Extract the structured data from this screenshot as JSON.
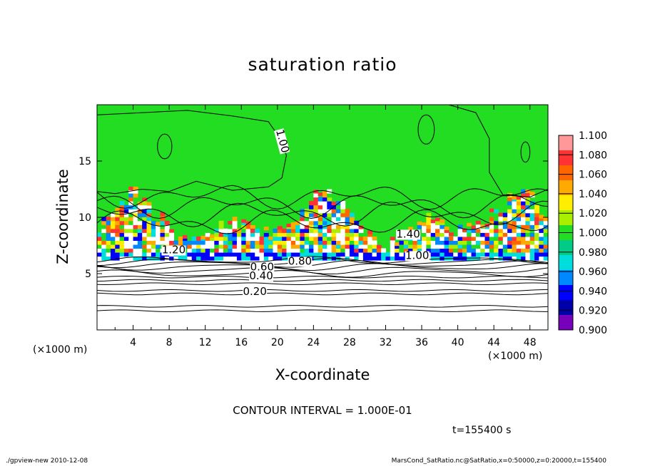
{
  "chart_data": {
    "type": "heatmap",
    "title": "saturation ratio",
    "xlabel": "X-coordinate",
    "ylabel": "Z-coordinate",
    "x_unit": "(×1000 m)",
    "xlim": [
      0,
      50
    ],
    "ylim": [
      0,
      20
    ],
    "xticks": [
      4,
      8,
      12,
      16,
      20,
      24,
      28,
      32,
      36,
      40,
      44,
      48
    ],
    "yticks": [
      5,
      10,
      15
    ],
    "colorbar": {
      "levels": [
        "1.100",
        "1.080",
        "1.060",
        "1.040",
        "1.020",
        "1.000",
        "0.980",
        "0.960",
        "0.940",
        "0.920",
        "0.900"
      ],
      "colors": [
        "#ff9999",
        "#ff3333",
        "#ff6600",
        "#ffaa00",
        "#ffee00",
        "#aaee00",
        "#22dd22",
        "#00cc88",
        "#00dddd",
        "#0088ff",
        "#0000ff",
        "#0000aa",
        "#7700bb"
      ],
      "placement": "right"
    },
    "contour_labels": [
      {
        "text": "1.00",
        "x": 20.5,
        "z": 16.5,
        "rotate": 75
      },
      {
        "text": "1.20",
        "x": 8.5,
        "z": 6.8,
        "rotate": 0
      },
      {
        "text": "0.60",
        "x": 18.3,
        "z": 5.3,
        "rotate": 0
      },
      {
        "text": "0.80",
        "x": 22.5,
        "z": 5.8,
        "rotate": 0
      },
      {
        "text": "0.40",
        "x": 18.2,
        "z": 4.5,
        "rotate": 0
      },
      {
        "text": "0.20",
        "x": 17.5,
        "z": 3.1,
        "rotate": 0
      },
      {
        "text": "1.40",
        "x": 34.5,
        "z": 8.2,
        "rotate": 0
      },
      {
        "text": "1.00",
        "x": 35.5,
        "z": 6.3,
        "rotate": 0
      }
    ],
    "background_levels": [
      {
        "z": 0.0,
        "value": 0.0
      },
      {
        "z": 5.5,
        "value": 0.9
      },
      {
        "z": 6.2,
        "value": 1.0
      },
      {
        "z": 10.0,
        "value": 1.0
      },
      {
        "z": 20.0,
        "value": 1.0
      }
    ],
    "contour_interval": "1.000E-01",
    "time_s": 155400
  },
  "texts": {
    "contour_interval": "CONTOUR INTERVAL = 1.000E-01",
    "time": "t=155400 s",
    "footer_left": "./gpview-new   2010-12-08",
    "footer_right": "MarsCond_SatRatio.nc@SatRatio,x=0:50000,z=0:20000,t=155400"
  }
}
